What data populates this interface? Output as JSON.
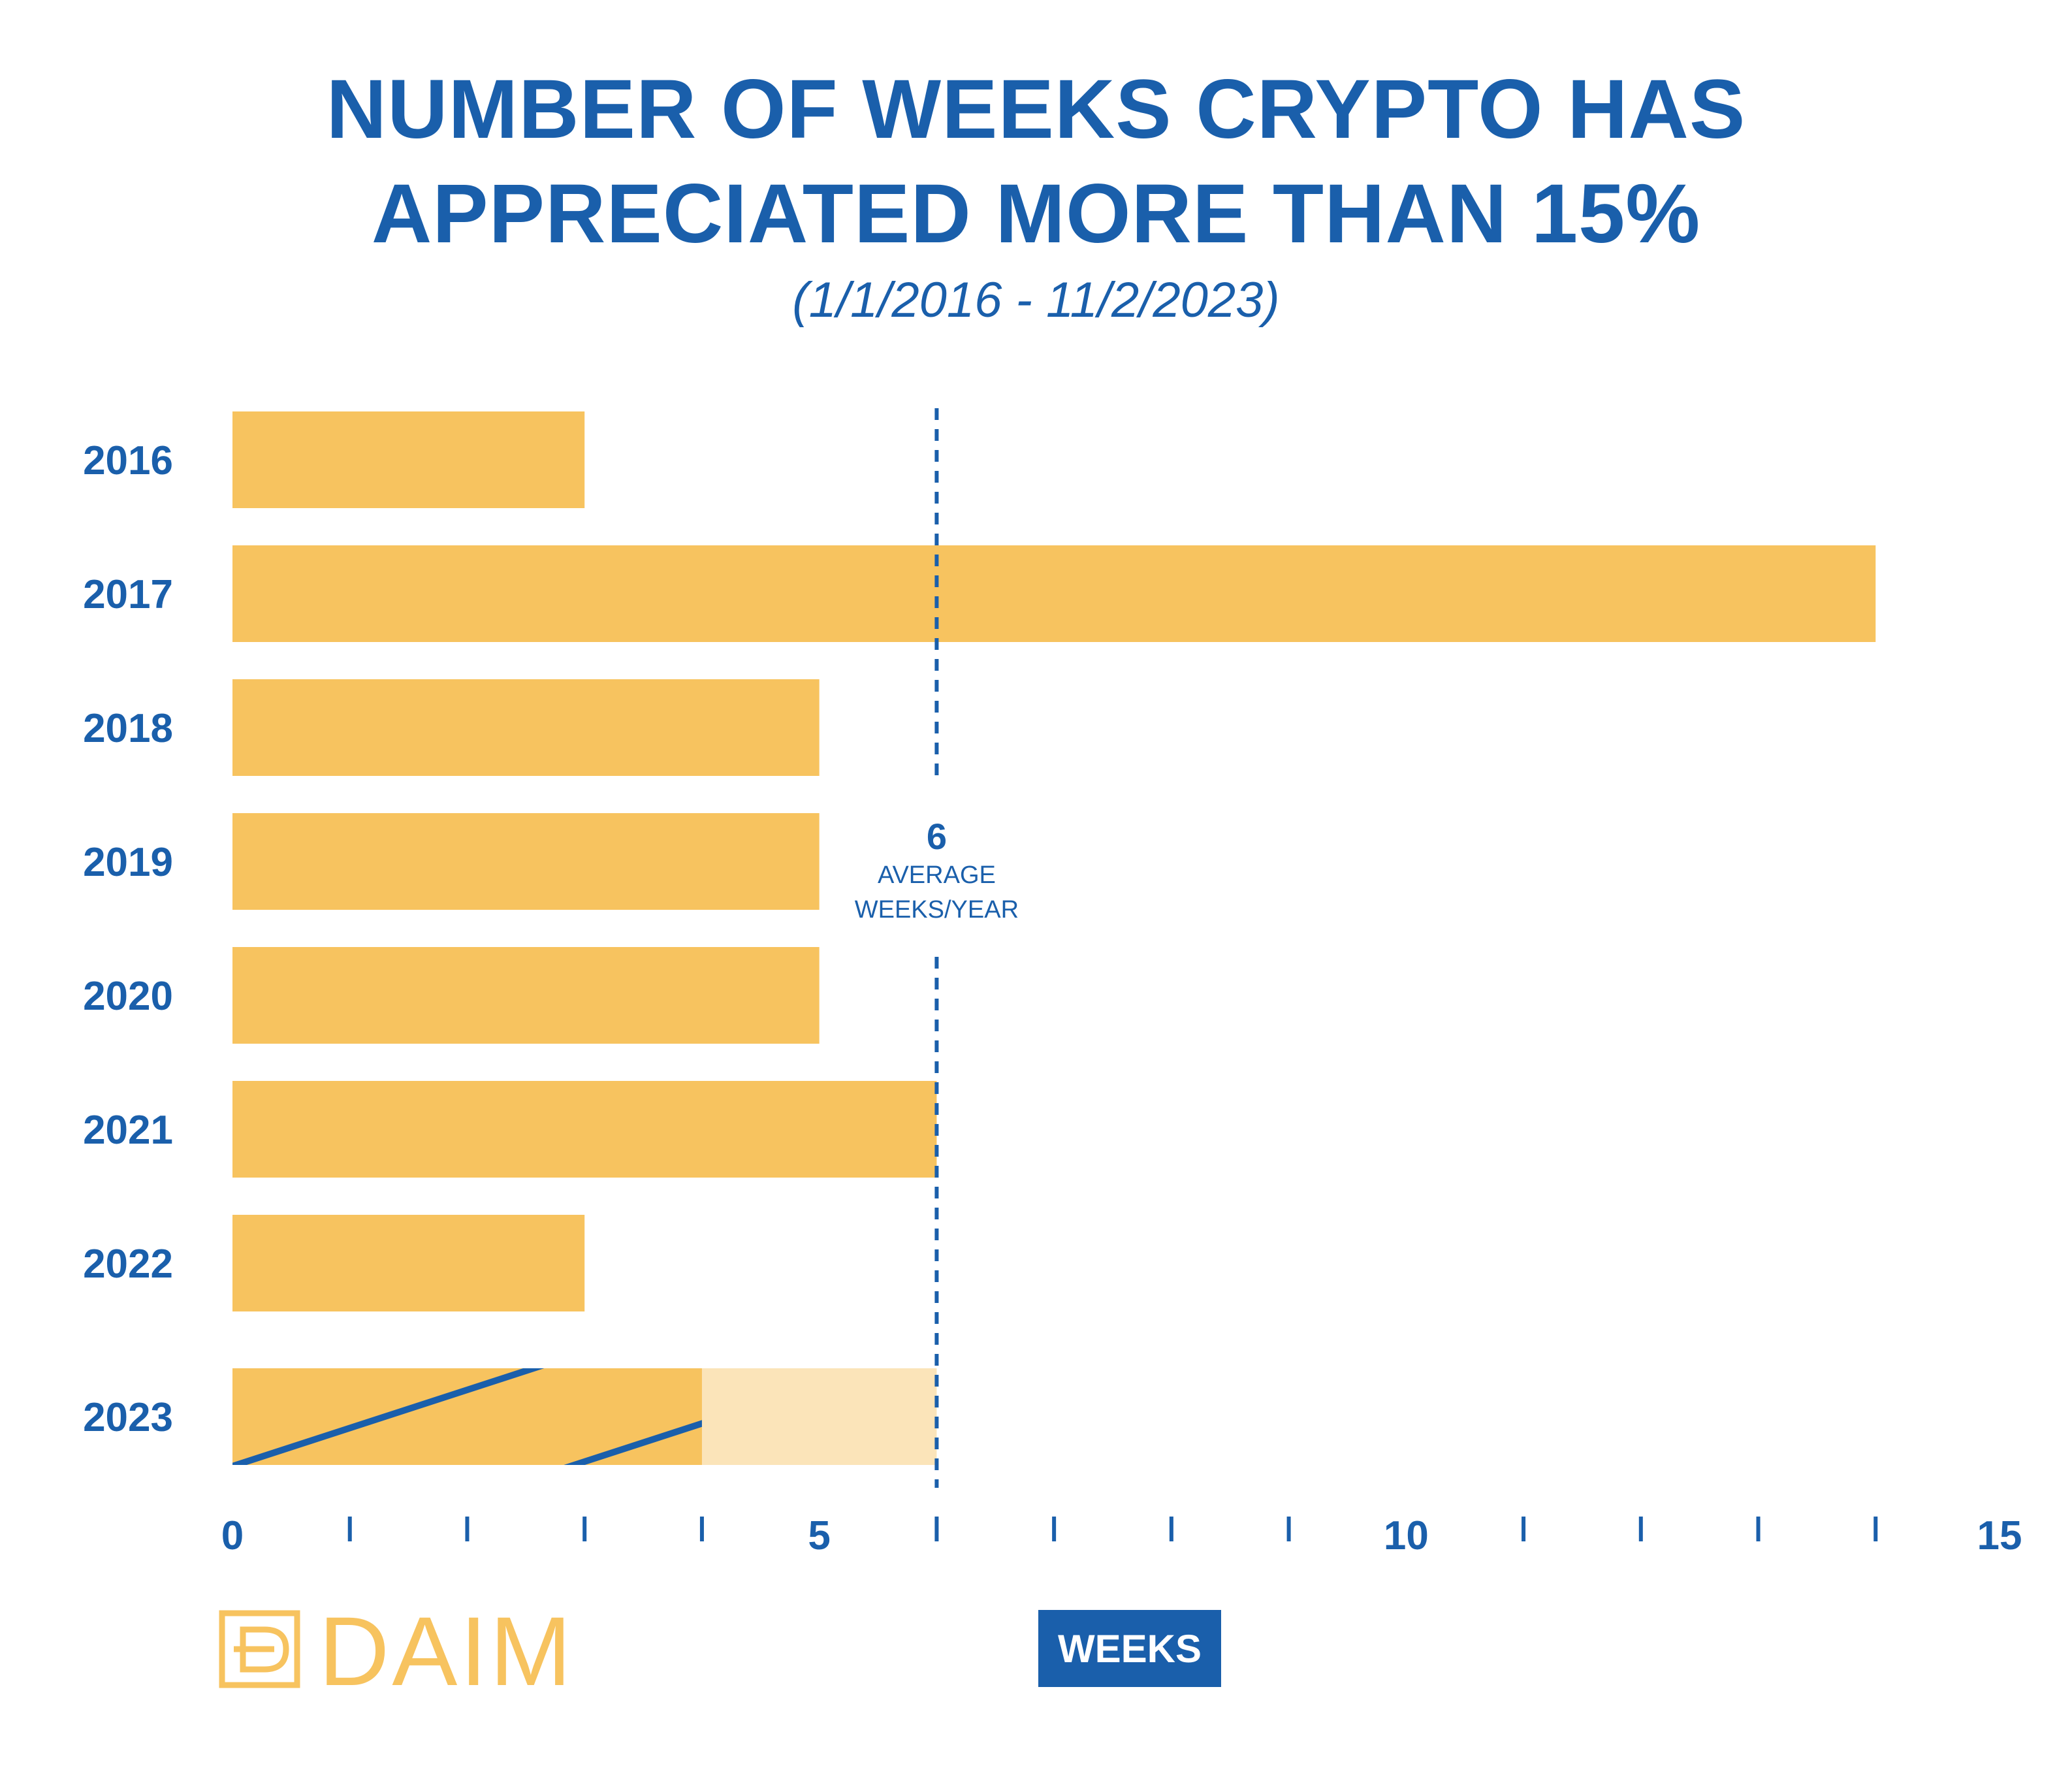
{
  "title_lines": [
    "NUMBER OF WEEKS CRYPTO HAS",
    "APPRECIATED MORE THAN 15%"
  ],
  "subtitle": "(1/1/2016 - 11/2/2023)",
  "x_unit_label": "WEEKS",
  "brand": "DAIM",
  "colors": {
    "text": "#1a5fab",
    "bar": "#f7c35f",
    "bar_projected": "#fbe4b9",
    "hatch": "#1a5fab",
    "background": "#ffffff"
  },
  "average_annotation": {
    "value_label": "6",
    "line1": "AVERAGE",
    "line2": "WEEKS/YEAR"
  },
  "chart_data": {
    "type": "bar",
    "orientation": "horizontal",
    "title": "NUMBER OF WEEKS CRYPTO HAS APPRECIATED MORE THAN 15%",
    "subtitle": "(1/1/2016 - 11/2/2023)",
    "xlabel": "WEEKS",
    "ylabel": "",
    "categories": [
      "2016",
      "2017",
      "2018",
      "2019",
      "2020",
      "2021",
      "2022",
      "2023"
    ],
    "values": [
      3,
      14,
      5,
      5,
      5,
      6,
      3,
      4
    ],
    "projected": {
      "category": "2023",
      "actual": 4,
      "projected_total": 6,
      "actual_style": "hatched"
    },
    "xlim": [
      0,
      15
    ],
    "x_ticks": [
      0,
      1,
      2,
      3,
      4,
      5,
      6,
      7,
      8,
      9,
      10,
      11,
      12,
      13,
      14,
      15
    ],
    "x_tick_labels": {
      "0": "0",
      "5": "5",
      "10": "10",
      "15": "15"
    },
    "reference_line": {
      "value": 6,
      "style": "dashed",
      "label": "6 AVERAGE WEEKS/YEAR"
    },
    "grid": false,
    "legend": "none"
  }
}
